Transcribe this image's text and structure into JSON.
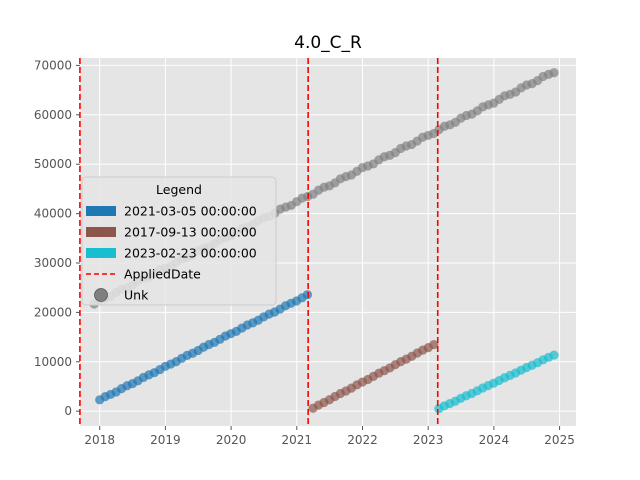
{
  "chart_data": {
    "type": "scatter",
    "title": "4.0_C_R",
    "xlabel": "",
    "ylabel": "",
    "xlim": [
      2017.7,
      2025.25
    ],
    "ylim": [
      -3000,
      71500
    ],
    "xticks": [
      2018,
      2019,
      2020,
      2021,
      2022,
      2023,
      2024,
      2025
    ],
    "yticks": [
      0,
      10000,
      20000,
      30000,
      40000,
      50000,
      60000,
      70000
    ],
    "grid": true,
    "legend": {
      "title": "Legend",
      "placement": "center-left",
      "entries": [
        {
          "label": "2021-03-05 00:00:00",
          "kind": "patch",
          "color": "#1f77b4"
        },
        {
          "label": "2017-09-13 00:00:00",
          "kind": "patch",
          "color": "#8c564b"
        },
        {
          "label": "2023-02-23 00:00:00",
          "kind": "patch",
          "color": "#17becf"
        },
        {
          "label": "AppliedDate",
          "kind": "dashed-line",
          "color": "#ff0000"
        },
        {
          "label": "Unk",
          "kind": "marker",
          "color": "#808080"
        }
      ]
    },
    "applied_dates": [
      "2017-09-13",
      "2021-03-05",
      "2023-02-23"
    ],
    "series": [
      {
        "name": "Unk",
        "color": "#808080",
        "x_start": "2017-12-01",
        "x_end": "2024-12-01",
        "y_start": 21700,
        "y_end": 68700,
        "points": 85
      },
      {
        "name": "2021-03-05 00:00:00",
        "color": "#1f77b4",
        "x_start": "2018-01-01",
        "x_end": "2021-03-01",
        "y_start": 2300,
        "y_end": 23500,
        "points": 39
      },
      {
        "name": "2017-09-13 00:00:00",
        "color": "#8c564b",
        "x_start": "2021-04-01",
        "x_end": "2023-02-01",
        "y_start": 600,
        "y_end": 13500,
        "points": 23
      },
      {
        "name": "2023-02-23 00:00:00",
        "color": "#17becf",
        "x_start": "2023-03-01",
        "x_end": "2024-12-01",
        "y_start": 500,
        "y_end": 11400,
        "points": 22
      }
    ]
  }
}
